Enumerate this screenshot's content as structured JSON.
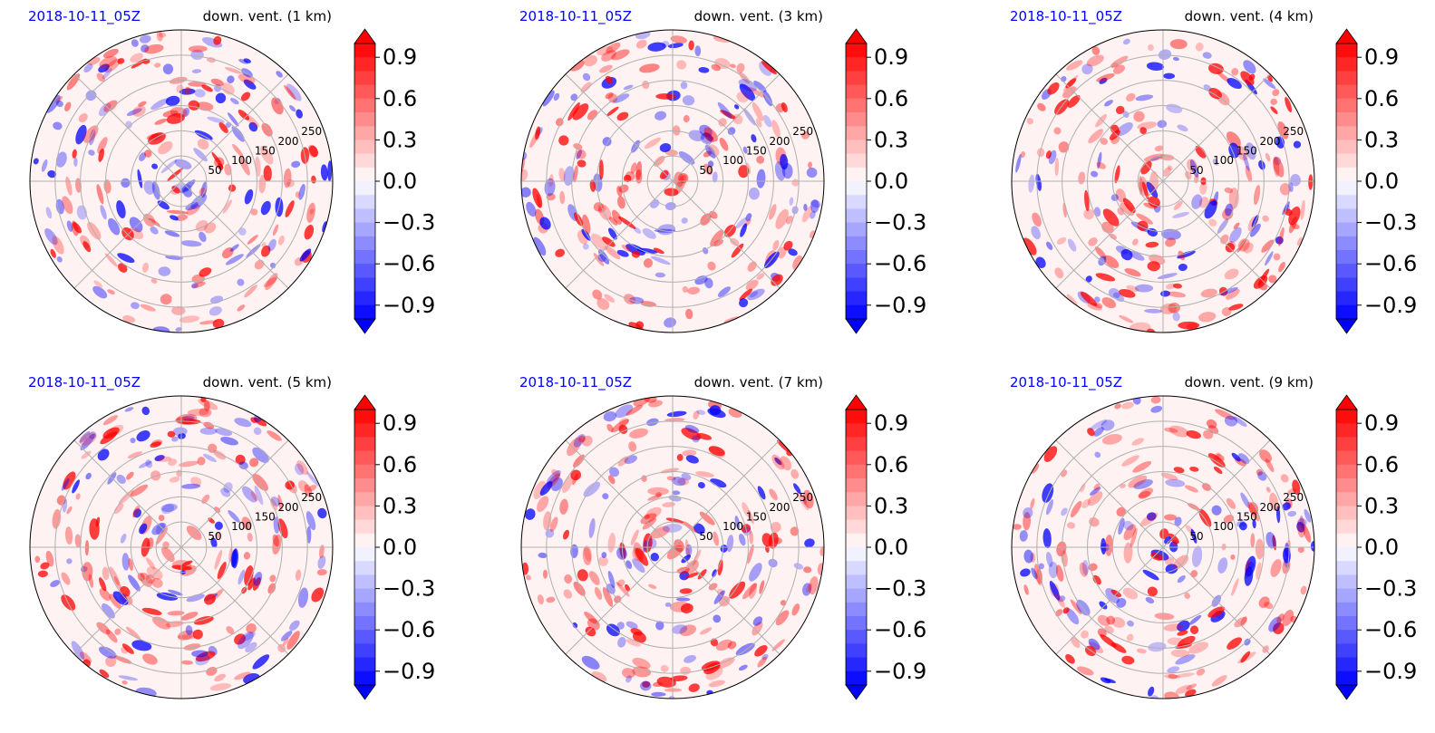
{
  "figure": {
    "colors": {
      "positive": "#ff0000",
      "negative": "#0000ff",
      "neutral": "#ffffff",
      "grid": "#b0b0b0",
      "date": "#0000ff"
    }
  },
  "chart_data": [
    {
      "type": "heatmap",
      "projection": "polar",
      "date_label": "2018-10-11_05Z",
      "title": "down. vent. (1 km)",
      "radial_ticks": [
        "50",
        "100",
        "150",
        "200",
        "250"
      ],
      "colorbar": {
        "ticks": [
          "0.9",
          "0.6",
          "0.3",
          "0.0",
          "−0.3",
          "−0.6",
          "−0.9"
        ],
        "range": [
          -1,
          1
        ],
        "extend": "both",
        "colormap": "bwr"
      }
    },
    {
      "type": "heatmap",
      "projection": "polar",
      "date_label": "2018-10-11_05Z",
      "title": "down. vent. (3 km)",
      "radial_ticks": [
        "50",
        "100",
        "150",
        "200",
        "250"
      ],
      "colorbar": {
        "ticks": [
          "0.9",
          "0.6",
          "0.3",
          "0.0",
          "−0.3",
          "−0.6",
          "−0.9"
        ],
        "range": [
          -1,
          1
        ],
        "extend": "both",
        "colormap": "bwr"
      }
    },
    {
      "type": "heatmap",
      "projection": "polar",
      "date_label": "2018-10-11_05Z",
      "title": "down. vent. (4 km)",
      "radial_ticks": [
        "50",
        "100",
        "150",
        "200",
        "250"
      ],
      "colorbar": {
        "ticks": [
          "0.9",
          "0.6",
          "0.3",
          "0.0",
          "−0.3",
          "−0.6",
          "−0.9"
        ],
        "range": [
          -1,
          1
        ],
        "extend": "both",
        "colormap": "bwr"
      }
    },
    {
      "type": "heatmap",
      "projection": "polar",
      "date_label": "2018-10-11_05Z",
      "title": "down. vent. (5 km)",
      "radial_ticks": [
        "50",
        "100",
        "150",
        "200",
        "250"
      ],
      "colorbar": {
        "ticks": [
          "0.9",
          "0.6",
          "0.3",
          "0.0",
          "−0.3",
          "−0.6",
          "−0.9"
        ],
        "range": [
          -1,
          1
        ],
        "extend": "both",
        "colormap": "bwr"
      }
    },
    {
      "type": "heatmap",
      "projection": "polar",
      "date_label": "2018-10-11_05Z",
      "title": "down. vent. (7 km)",
      "radial_ticks": [
        "50",
        "100",
        "150",
        "200",
        "250"
      ],
      "colorbar": {
        "ticks": [
          "0.9",
          "0.6",
          "0.3",
          "0.0",
          "−0.3",
          "−0.6",
          "−0.9"
        ],
        "range": [
          -1,
          1
        ],
        "extend": "both",
        "colormap": "bwr"
      }
    },
    {
      "type": "heatmap",
      "projection": "polar",
      "date_label": "2018-10-11_05Z",
      "title": "down. vent. (9 km)",
      "radial_ticks": [
        "50",
        "100",
        "150",
        "200",
        "250"
      ],
      "colorbar": {
        "ticks": [
          "0.9",
          "0.6",
          "0.3",
          "0.0",
          "−0.3",
          "−0.6",
          "−0.9"
        ],
        "range": [
          -1,
          1
        ],
        "extend": "both",
        "colormap": "bwr"
      }
    }
  ]
}
